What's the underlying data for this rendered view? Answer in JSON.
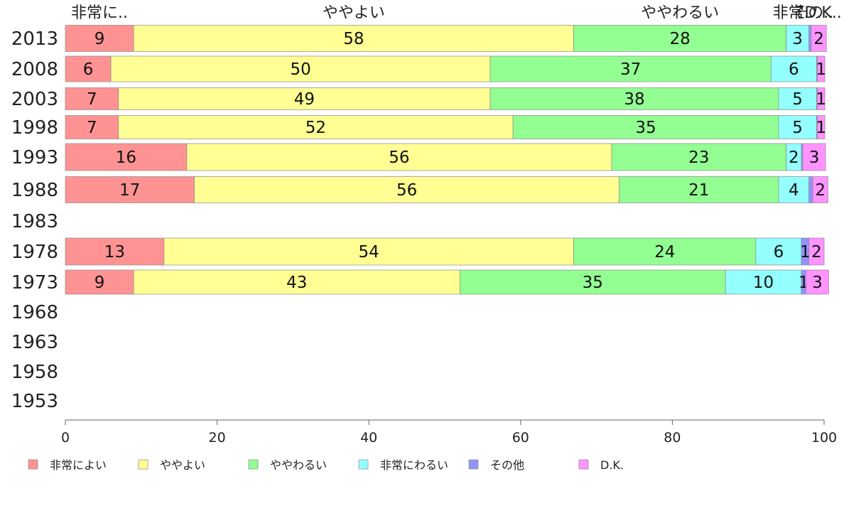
{
  "chart_data": {
    "type": "bar",
    "orientation": "horizontal",
    "stacked": true,
    "categories": [
      "2013",
      "2008",
      "2003",
      "1998",
      "1993",
      "1988",
      "1983",
      "1978",
      "1973",
      "1968",
      "1963",
      "1958",
      "1953"
    ],
    "series": [
      {
        "name": "非常によい",
        "color": "#ff9393",
        "values": [
          9,
          6,
          7,
          7,
          16,
          17,
          null,
          13,
          9,
          null,
          null,
          null,
          null
        ]
      },
      {
        "name": "ややよい",
        "color": "#ffff93",
        "values": [
          58,
          50,
          49,
          52,
          56,
          56,
          null,
          54,
          43,
          null,
          null,
          null,
          null
        ]
      },
      {
        "name": "ややわるい",
        "color": "#93ff93",
        "values": [
          28,
          37,
          38,
          35,
          23,
          21,
          null,
          24,
          35,
          null,
          null,
          null,
          null
        ]
      },
      {
        "name": "非常にわるい",
        "color": "#93ffff",
        "values": [
          3,
          6,
          5,
          5,
          2,
          4,
          null,
          6,
          10,
          null,
          null,
          null,
          null
        ]
      },
      {
        "name": "その他",
        "color": "#9393ff",
        "values": [
          0.3,
          0.1,
          0.1,
          0.1,
          0.2,
          0.5,
          null,
          1,
          0.6,
          null,
          null,
          null,
          null
        ]
      },
      {
        "name": "D.K.",
        "color": "#ff93ff",
        "values": [
          2,
          1,
          1,
          1,
          3,
          2,
          null,
          2,
          3,
          null,
          null,
          null,
          null
        ]
      }
    ],
    "segment_labels": [
      [
        "9",
        "58",
        "28",
        "3",
        "",
        "2"
      ],
      [
        "6",
        "50",
        "37",
        "6",
        "",
        "1"
      ],
      [
        "7",
        "49",
        "38",
        "5",
        "",
        "1"
      ],
      [
        "7",
        "52",
        "35",
        "5",
        "",
        "1"
      ],
      [
        "16",
        "56",
        "23",
        "2",
        "",
        "3"
      ],
      [
        "17",
        "56",
        "21",
        "4",
        "",
        "2"
      ],
      null,
      [
        "13",
        "54",
        "24",
        "6",
        "1",
        "2"
      ],
      [
        "9",
        "43",
        "35",
        "10",
        "1",
        "3"
      ],
      null,
      null,
      null,
      null
    ],
    "top_labels": [
      "非常に..",
      "ややよい",
      "ややわるい",
      "非常..",
      "その..",
      "D.K.."
    ],
    "x_ticks": [
      "0",
      "20",
      "40",
      "60",
      "80",
      "100"
    ],
    "xlim": [
      0,
      100
    ],
    "legend_position": "bottom",
    "title": "",
    "xlabel": "",
    "ylabel": ""
  }
}
